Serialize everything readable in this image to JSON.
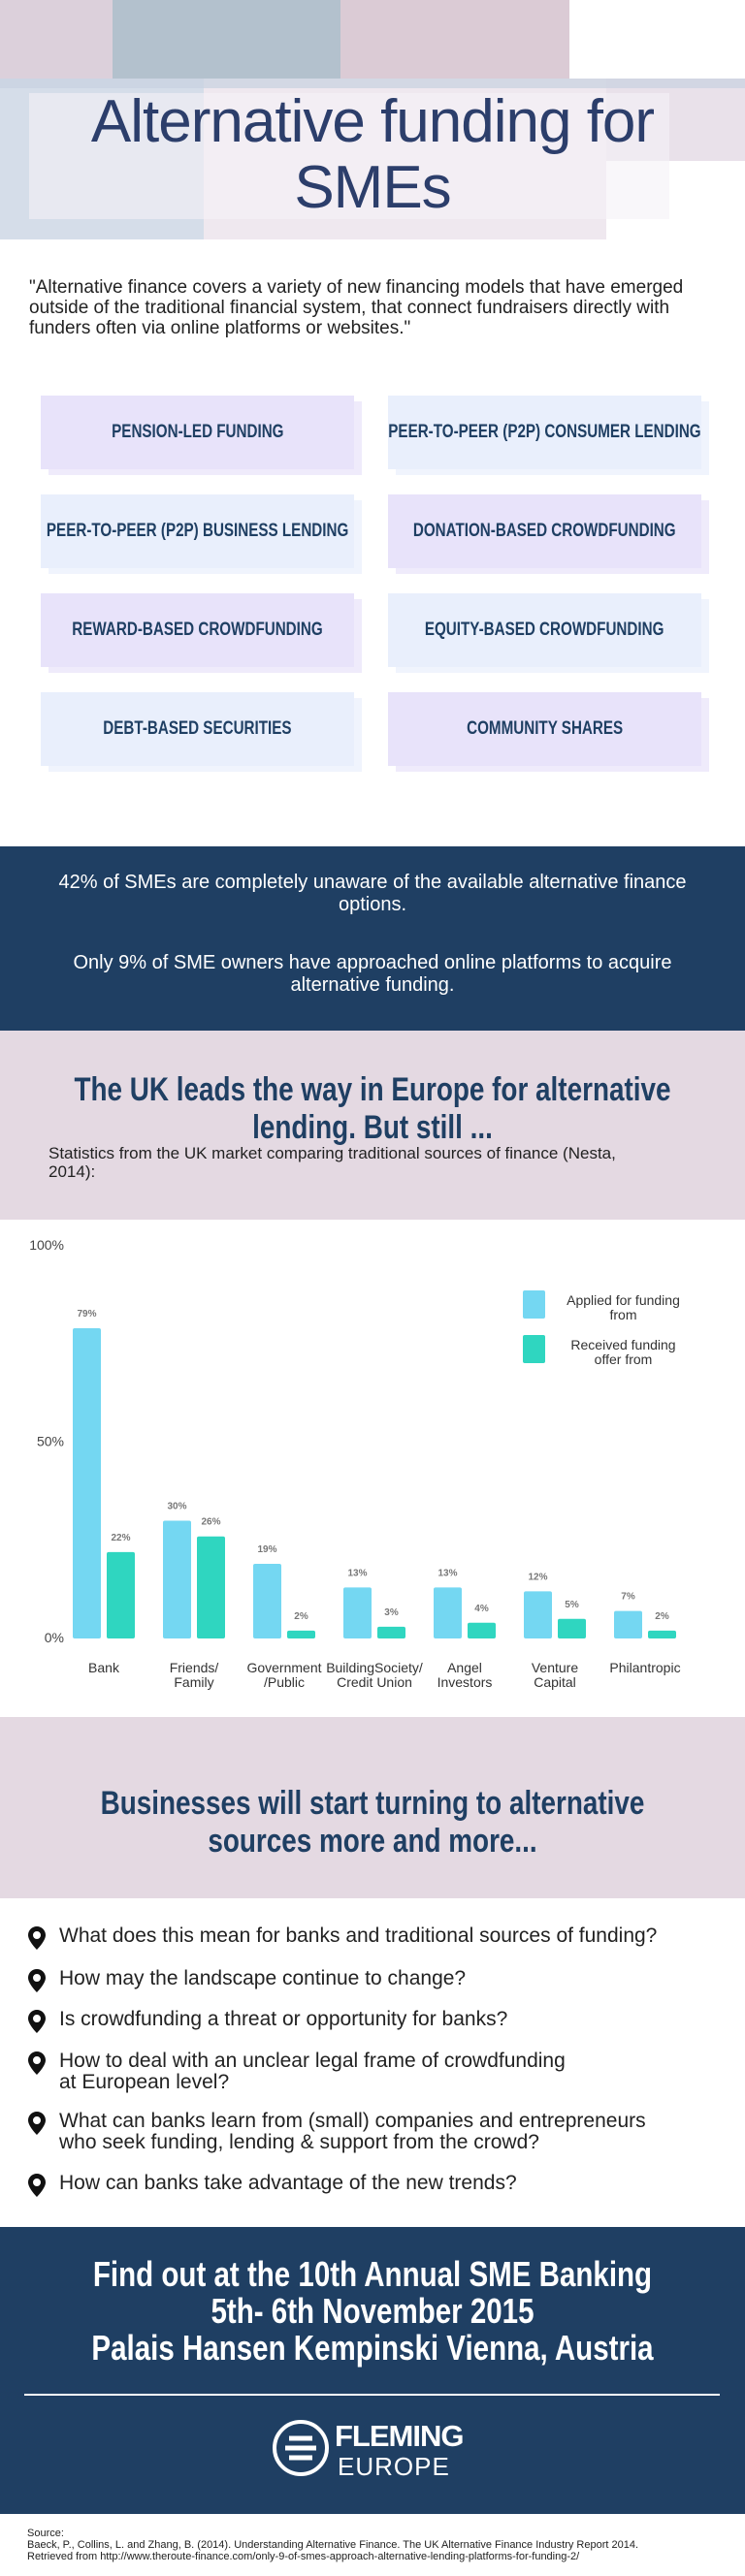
{
  "header": {
    "title": "Alternative funding for SMEs"
  },
  "quote": "\"Alternative finance covers a variety of new financing models that have emerged outside of the traditional financial system, that connect fundraisers directly with funders often via online platforms or websites.\"",
  "models": [
    "PENSION-LED FUNDING",
    "PEER-TO-PEER (P2P) CONSUMER LENDING",
    "PEER-TO-PEER (P2P) BUSINESS LENDING",
    "DONATION-BASED CROWDFUNDING",
    "REWARD-BASED CROWDFUNDING",
    "EQUITY-BASED CROWDFUNDING",
    "DEBT-BASED SECURITIES",
    "COMMUNITY SHARES"
  ],
  "stats": [
    "42% of SMEs are completely unaware of the available alternative finance options.",
    "Only 9% of SME owners have approached online platforms to acquire alternative funding."
  ],
  "section_heading": "The UK leads the way in Europe for alternative lending. But still ...",
  "chart_data": {
    "type": "bar",
    "subtitle": "Statistics from the UK market comparing traditional sources of finance (Nesta, 2014):",
    "categories": [
      "Bank",
      "Friends/\nFamily",
      "Government\n/Public",
      "BuildingSociety/\nCredit Union",
      "Angel\nInvestors",
      "Venture\nCapital",
      "Philantropic"
    ],
    "series": [
      {
        "name": "Applied for funding from",
        "color": "#74d7f2",
        "values": [
          79,
          30,
          19,
          13,
          13,
          12,
          7
        ],
        "value_labels": [
          "79%",
          "30%",
          "19%",
          "13%",
          "13%",
          "12%",
          "7%"
        ]
      },
      {
        "name": "Received funding offer from",
        "color": "#2fd6c0",
        "values": [
          22,
          26,
          2,
          3,
          4,
          5,
          2
        ],
        "value_labels": [
          "22%",
          "26%",
          "2%",
          "3%",
          "4%",
          "5%",
          "2%"
        ]
      }
    ],
    "ylim": [
      0,
      100
    ],
    "yticks": [
      {
        "value": 0,
        "label": "0%"
      },
      {
        "value": 50,
        "label": "50%"
      },
      {
        "value": 100,
        "label": "100%"
      }
    ]
  },
  "trend_heading": "Businesses will start turning to alternative sources more and more...",
  "questions": [
    "What does this mean for banks and traditional sources of funding?",
    "How may the landscape continue to change?",
    "Is crowdfunding a threat or opportunity for banks?",
    "How to deal with an unclear legal frame of crowdfunding\nat European level?",
    "What can banks learn from (small) companies and entrepreneurs\nwho seek funding, lending & support from the crowd?",
    "How can banks take advantage of the new trends?"
  ],
  "event": {
    "lines": [
      "Find out at the 10th Annual SME Banking",
      "5th- 6th November 2015",
      "Palais Hansen Kempinski Vienna, Austria"
    ]
  },
  "logo": {
    "name": "FLEMING",
    "sub": "EUROPE"
  },
  "source": {
    "label": "Source:",
    "text": "Baeck, P., Collins, L. and Zhang, B. (2014). Understanding Alternative Finance. The UK Alternative Finance Industry Report 2014.\nRetrieved from http://www.theroute-finance.com/only-9-of-smes-approach-alternative-lending-platforms-for-funding-2/"
  }
}
